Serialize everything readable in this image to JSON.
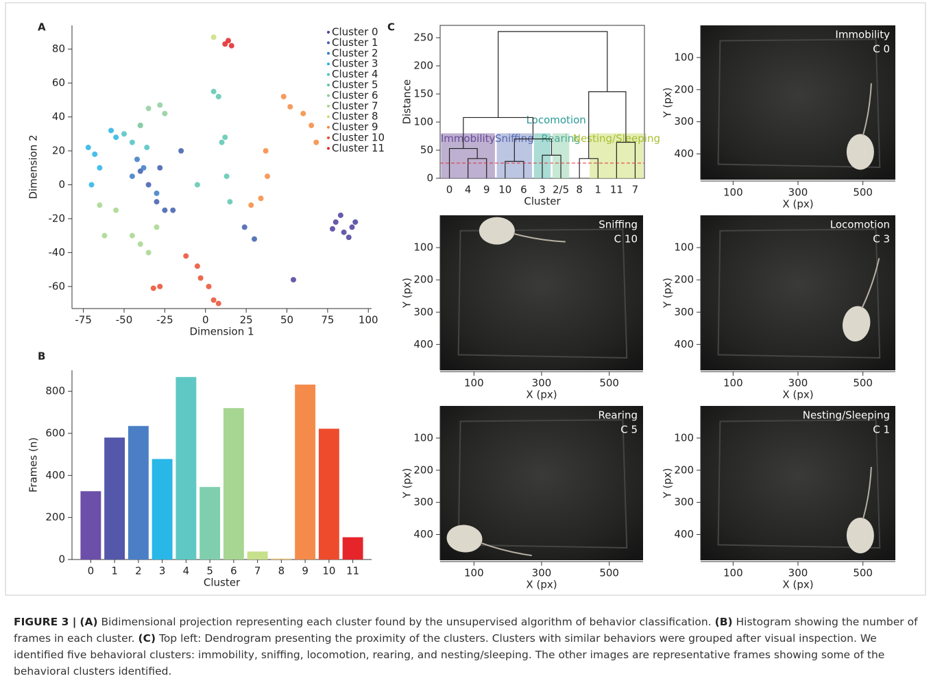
{
  "chart_data": [
    {
      "type": "scatter",
      "panel": "A",
      "xlabel": "Dimension 1",
      "ylabel": "Dimension 2",
      "xlim": [
        -82,
        102
      ],
      "ylim": [
        -73,
        94
      ],
      "xticks": [
        -75,
        -50,
        -25,
        0,
        25,
        50,
        75,
        100
      ],
      "yticks": [
        -60,
        -40,
        -20,
        0,
        20,
        40,
        60,
        80
      ],
      "series": [
        {
          "name": "Cluster 0",
          "color": "#4a3f9c",
          "x": [
            80,
            85,
            90,
            83,
            88,
            54,
            78,
            92
          ],
          "y": [
            -22,
            -28,
            -25,
            -18,
            -31,
            -56,
            -26,
            -22
          ]
        },
        {
          "name": "Cluster 1",
          "color": "#3e5dae",
          "x": [
            -40,
            -35,
            -30,
            -25,
            -20,
            -15,
            -28,
            24,
            30
          ],
          "y": [
            8,
            0,
            -10,
            -15,
            -15,
            20,
            10,
            -25,
            -32
          ]
        },
        {
          "name": "Cluster 2",
          "color": "#3a7bc4",
          "x": [
            -42,
            -38,
            -45,
            -30
          ],
          "y": [
            15,
            10,
            5,
            -5
          ]
        },
        {
          "name": "Cluster 3",
          "color": "#27b4e5",
          "x": [
            -72,
            -68,
            -65,
            -70,
            -58,
            -55
          ],
          "y": [
            22,
            18,
            10,
            0,
            32,
            28
          ]
        },
        {
          "name": "Cluster 4",
          "color": "#4fc2c4",
          "x": [
            -50,
            -45,
            -40,
            -36
          ],
          "y": [
            30,
            25,
            35,
            22
          ]
        },
        {
          "name": "Cluster 5",
          "color": "#5cc5b0",
          "x": [
            5,
            10,
            13,
            15,
            -5,
            12,
            8
          ],
          "y": [
            55,
            25,
            5,
            -10,
            0,
            28,
            52
          ]
        },
        {
          "name": "Cluster 6",
          "color": "#8fce9d",
          "x": [
            -35,
            -28,
            -25,
            -40
          ],
          "y": [
            45,
            47,
            42,
            35
          ]
        },
        {
          "name": "Cluster 7",
          "color": "#a6d68c",
          "x": [
            -62,
            -55,
            -45,
            -40,
            -35,
            -30,
            -65
          ],
          "y": [
            -30,
            -15,
            -30,
            -35,
            -40,
            -25,
            -12
          ]
        },
        {
          "name": "Cluster 8",
          "color": "#c9df7f",
          "x": [
            5
          ],
          "y": [
            87
          ]
        },
        {
          "name": "Cluster 9",
          "color": "#f5893f",
          "x": [
            48,
            52,
            60,
            65,
            68,
            37,
            38,
            34,
            28
          ],
          "y": [
            52,
            46,
            42,
            35,
            25,
            20,
            5,
            -8,
            -12
          ]
        },
        {
          "name": "Cluster 10",
          "color": "#e94e2f",
          "x": [
            -5,
            -3,
            2,
            5,
            8,
            -28,
            -32,
            -12
          ],
          "y": [
            -48,
            -55,
            -60,
            -68,
            -70,
            -60,
            -61,
            -42
          ]
        },
        {
          "name": "Cluster 11",
          "color": "#e1242a",
          "x": [
            12,
            14,
            16
          ],
          "y": [
            83,
            85,
            82
          ]
        }
      ]
    },
    {
      "type": "bar",
      "panel": "B",
      "xlabel": "Cluster",
      "ylabel": "Frames (n)",
      "categories": [
        "0",
        "1",
        "2",
        "3",
        "4",
        "5",
        "6",
        "7",
        "8",
        "9",
        "10",
        "11"
      ],
      "values": [
        325,
        580,
        635,
        478,
        868,
        345,
        720,
        38,
        5,
        832,
        622,
        106
      ],
      "colors": [
        "#6b4fa8",
        "#5457aa",
        "#4a7fc5",
        "#28b7e7",
        "#5fc8c4",
        "#7fcfae",
        "#a6d691",
        "#c6e08b",
        "#f3d08b",
        "#f58b4b",
        "#ee4b2d",
        "#e6252a"
      ],
      "ylim": [
        0,
        900
      ],
      "yticks": [
        0,
        200,
        400,
        600,
        800
      ]
    },
    {
      "type": "dendrogram",
      "panel": "C",
      "xlabel": "Cluster",
      "ylabel": "Distance",
      "categories": [
        "0",
        "4",
        "9",
        "10",
        "6",
        "3",
        "2/5",
        "8",
        "1",
        "11",
        "7"
      ],
      "merges": [
        {
          "left": 1,
          "right": 2,
          "height": 35
        },
        {
          "left": 0,
          "right": 11,
          "height": 53
        },
        {
          "left": 3,
          "right": 4,
          "height": 30
        },
        {
          "left": 5,
          "right": 6,
          "height": 41
        },
        {
          "left": 13,
          "right": 14,
          "height": 70
        },
        {
          "left": 12,
          "right": 15,
          "height": 108
        },
        {
          "left": 7,
          "right": 8,
          "height": 35
        },
        {
          "left": 9,
          "right": 10,
          "height": 64
        },
        {
          "left": 17,
          "right": 18,
          "height": 154
        },
        {
          "left": 16,
          "right": 19,
          "height": 261
        }
      ],
      "groups": [
        {
          "label": "Immobility",
          "from": 0,
          "to": 2,
          "height": 80,
          "color": "#6a4a9a",
          "fill": "#a796c0"
        },
        {
          "label": "Sniffing",
          "from": 3,
          "to": 4,
          "height": 80,
          "color": "#5a6ab0",
          "fill": "#a6b2d8"
        },
        {
          "label": "Locomotion",
          "from": 5,
          "to": 5,
          "height": 80,
          "color": "#2a9a98",
          "fill": "#8fd0c8"
        },
        {
          "label": "Rearing",
          "from": 6,
          "to": 6,
          "height": 80,
          "color": "#4aa890",
          "fill": "#b5e0c8"
        },
        {
          "label": "Nesting/Sleeping",
          "from": 8,
          "to": 10,
          "height": 80,
          "color": "#a8c030",
          "fill": "#dbe89c"
        }
      ],
      "threshold": 27,
      "threshold_color": "#e03030",
      "ylim": [
        0,
        272
      ],
      "yticks": [
        0,
        50,
        100,
        150,
        200,
        250
      ]
    },
    {
      "type": "image",
      "title": "Immobility",
      "subtitle": "C 0",
      "xlabel": "X (px)",
      "ylabel": "Y (px)",
      "xlim": [
        0,
        600
      ],
      "ylim": [
        480,
        0
      ],
      "xticks": [
        100,
        300,
        500
      ],
      "yticks": [
        100,
        200,
        300,
        400
      ]
    },
    {
      "type": "image",
      "title": "Sniffing",
      "subtitle": "C 10",
      "xlabel": "X (px)",
      "ylabel": "Y (px)",
      "xlim": [
        0,
        600
      ],
      "ylim": [
        480,
        0
      ],
      "xticks": [
        100,
        300,
        500
      ],
      "yticks": [
        100,
        200,
        300,
        400
      ]
    },
    {
      "type": "image",
      "title": "Locomotion",
      "subtitle": "C 3",
      "xlabel": "X (px)",
      "ylabel": "Y (px)",
      "xlim": [
        0,
        600
      ],
      "ylim": [
        480,
        0
      ],
      "xticks": [
        100,
        300,
        500
      ],
      "yticks": [
        100,
        200,
        300,
        400
      ]
    },
    {
      "type": "image",
      "title": "Rearing",
      "subtitle": "C 5",
      "xlabel": "X (px)",
      "ylabel": "Y (px)",
      "xlim": [
        0,
        600
      ],
      "ylim": [
        480,
        0
      ],
      "xticks": [
        100,
        300,
        500
      ],
      "yticks": [
        100,
        200,
        300,
        400
      ]
    },
    {
      "type": "image",
      "title": "Nesting/Sleeping",
      "subtitle": "C 1",
      "xlabel": "X (px)",
      "ylabel": "Y (px)",
      "xlim": [
        0,
        600
      ],
      "ylim": [
        480,
        0
      ],
      "xticks": [
        100,
        300,
        500
      ],
      "yticks": [
        100,
        200,
        300,
        400
      ]
    }
  ],
  "caption": {
    "label": "FIGURE 3 |",
    "parts": [
      {
        "tag": "(A)",
        "text": "Bidimensional projection representing each cluster found by the unsupervised algorithm of behavior classification."
      },
      {
        "tag": "(B)",
        "text": "Histogram showing the number of frames in each cluster."
      },
      {
        "tag": "(C)",
        "text": "Top left: Dendrogram presenting the proximity of the clusters. Clusters with similar behaviors were grouped after visual inspection. We identified five behavioral clusters: immobility, sniffing, locomotion, rearing, and nesting/sleeping. The other images are representative frames showing some of the behavioral clusters identified."
      }
    ]
  }
}
